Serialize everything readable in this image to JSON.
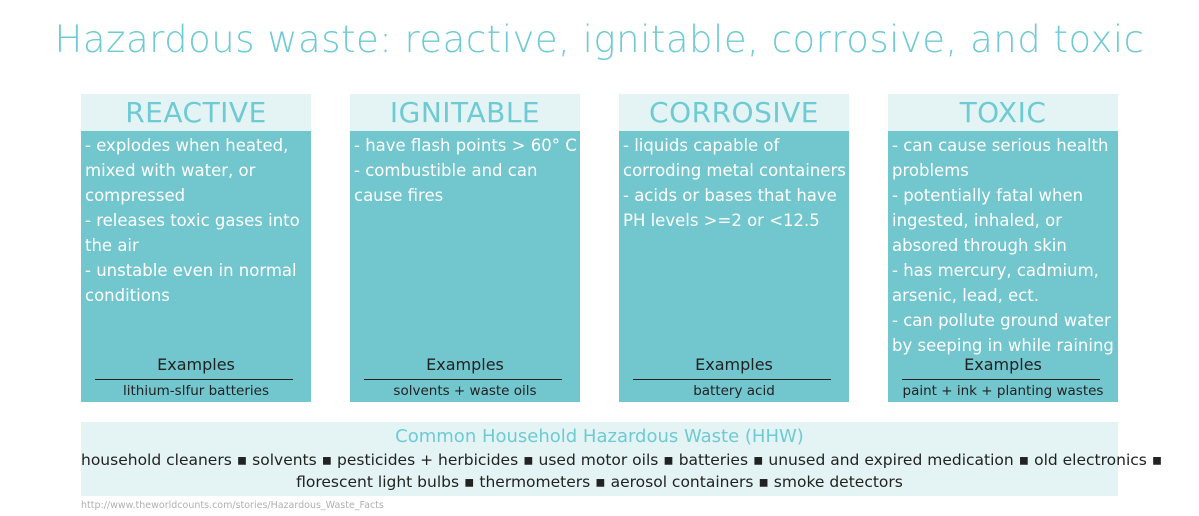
{
  "title": "Hazardous waste: reactive, ignitable, corrosive, and toxic",
  "categories": [
    {
      "name": "REACTIVE",
      "lines": [
        "- explodes when heated,",
        "mixed with water, or",
        "compressed",
        "- releases toxic gases into",
        "the air",
        "- unstable even in normal",
        "conditions"
      ],
      "examples_label": "Examples",
      "example": "lithium-slfur batteries"
    },
    {
      "name": "IGNITABLE",
      "lines": [
        "- have flash points > 60° C",
        "- combustible and can",
        "cause fires"
      ],
      "examples_label": "Examples",
      "example": "solvents + waste oils"
    },
    {
      "name": "CORROSIVE",
      "lines": [
        "- liquids capable of",
        "corroding metal containers",
        "- acids or bases that have",
        "PH levels >=2 or <12.5"
      ],
      "examples_label": "Examples",
      "example": "battery acid"
    },
    {
      "name": "TOXIC",
      "lines": [
        "- can cause serious health",
        "problems",
        "- potentially fatal when",
        "ingested, inhaled, or",
        "absored through skin",
        "- has mercury, cadmium,",
        "arsenic, lead, ect.",
        "- can pollute ground water",
        "by seeping in while raining"
      ],
      "examples_label": "Examples",
      "example": "paint + ink + planting wastes"
    }
  ],
  "hhw": {
    "title": "Common Household Hazardous Waste (HHW)",
    "line1": "household cleaners ▪ solvents ▪ pesticides + herbicides ▪ used motor oils ▪ batteries ▪ unused and expired medication ▪ old electronics ▪",
    "line2": "florescent light bulbs ▪ thermometers ▪ aerosol containers ▪ smoke detectors"
  },
  "source": "http://www.theworldcounts.com/stories/Hazardous_Waste_Facts",
  "colors": {
    "accent": "#6ecad3",
    "card_fill": "#72c6ce",
    "header_fill": "#e4f4f5"
  }
}
